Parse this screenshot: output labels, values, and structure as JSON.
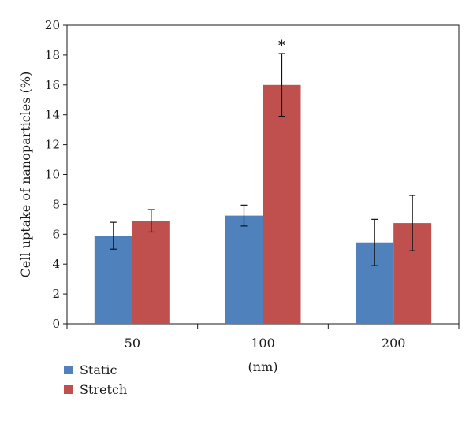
{
  "chart_data": {
    "type": "bar",
    "title": "",
    "xlabel": "(nm)",
    "ylabel": "Cell uptake of nanoparticles (%)",
    "ylim": [
      0,
      20
    ],
    "yticks": [
      0,
      2,
      4,
      6,
      8,
      10,
      12,
      14,
      16,
      18,
      20
    ],
    "categories": [
      "50",
      "100",
      "200"
    ],
    "grid": false,
    "legend_position": "bottom-left",
    "series": [
      {
        "name": "Static",
        "color": "#4f81bd",
        "values": [
          5.9,
          7.25,
          5.45
        ],
        "errors": [
          0.9,
          0.7,
          1.55
        ]
      },
      {
        "name": "Stretch",
        "color": "#c0504d",
        "values": [
          6.9,
          16.0,
          6.75
        ],
        "errors": [
          0.75,
          2.1,
          1.85
        ]
      }
    ],
    "annotations": [
      {
        "category": "100",
        "series": "Stretch",
        "text": "*"
      }
    ]
  }
}
